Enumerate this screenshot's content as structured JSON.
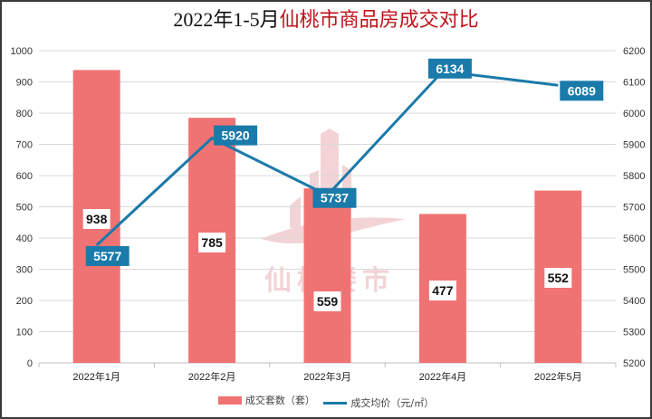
{
  "title": {
    "prefix": "2022年1-5月",
    "main": "仙桃市商品房成交对比"
  },
  "colors": {
    "bar": "#f07373",
    "line": "#1a7aaa",
    "label_bg_line": "#1a7aaa",
    "grid": "#d9d9d9",
    "title_accent": "#c0141c"
  },
  "watermark": {
    "text": "仙桃楼市",
    "icon": "building-logo-icon"
  },
  "legend": {
    "bar_label": "成交套数（套）",
    "line_label": "成交均价（元/㎡）"
  },
  "chart_data": {
    "type": "bar+line",
    "title": "2022年1-5月仙桃市商品房成交对比",
    "categories": [
      "2022年1月",
      "2022年2月",
      "2022年3月",
      "2022年4月",
      "2022年5月"
    ],
    "series": [
      {
        "name": "成交套数（套）",
        "type": "bar",
        "axis": "left",
        "values": [
          938,
          785,
          559,
          477,
          552
        ]
      },
      {
        "name": "成交均价（元/㎡）",
        "type": "line",
        "axis": "right",
        "values": [
          5577,
          5920,
          5737,
          6134,
          6089
        ]
      }
    ],
    "y_left": {
      "min": 0,
      "max": 1000,
      "step": 100,
      "ticks": [
        0,
        100,
        200,
        300,
        400,
        500,
        600,
        700,
        800,
        900,
        1000
      ]
    },
    "y_right": {
      "min": 5200,
      "max": 6200,
      "step": 100,
      "ticks": [
        5200,
        5300,
        5400,
        5500,
        5600,
        5700,
        5800,
        5900,
        6000,
        6100,
        6200
      ]
    },
    "grid": true,
    "legend_position": "bottom"
  }
}
